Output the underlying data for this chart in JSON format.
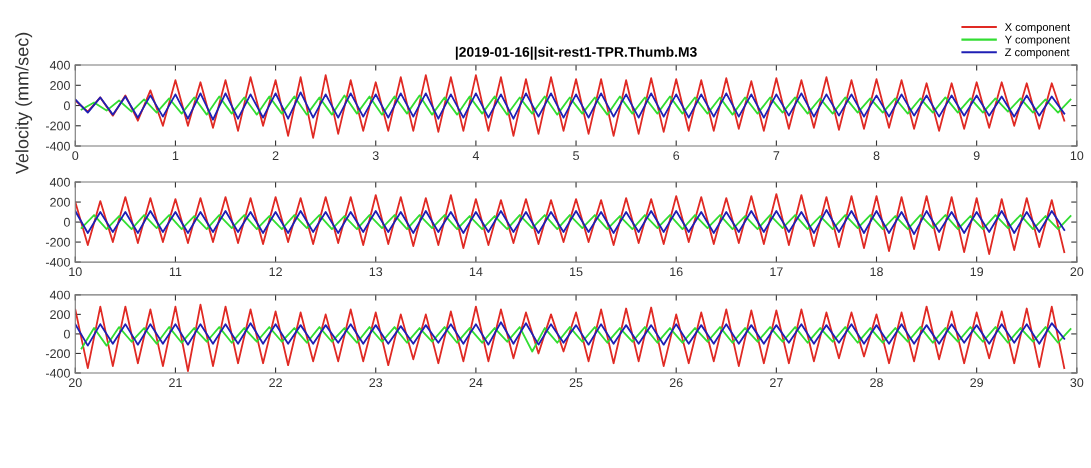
{
  "chart_data": [
    {
      "type": "line",
      "title": "|2019-01-16||sit-rest1-TPR.Thumb.M3",
      "ylabel": "Velocity (mm/sec)",
      "legend": "top right",
      "xlim": [
        0,
        10
      ],
      "xticks": [
        0,
        1,
        2,
        3,
        4,
        5,
        6,
        7,
        8,
        9,
        10
      ],
      "ylim": [
        -400,
        400
      ],
      "yticks": [
        -400,
        -200,
        0,
        200,
        400
      ],
      "x": [
        0,
        0.125,
        0.25,
        0.375,
        0.5,
        0.625,
        0.75,
        0.875,
        1,
        1.125,
        1.25,
        1.375,
        1.5,
        1.625,
        1.75,
        1.875,
        2,
        2.125,
        2.25,
        2.375,
        2.5,
        2.625,
        2.75,
        2.875,
        3,
        3.125,
        3.25,
        3.375,
        3.5,
        3.625,
        3.75,
        3.875,
        4,
        4.125,
        4.25,
        4.375,
        4.5,
        4.625,
        4.75,
        4.875,
        5,
        5.125,
        5.25,
        5.375,
        5.5,
        5.625,
        5.75,
        5.875,
        6,
        6.125,
        6.25,
        6.375,
        6.5,
        6.625,
        6.75,
        6.875,
        7,
        7.125,
        7.25,
        7.375,
        7.5,
        7.625,
        7.75,
        7.875,
        8,
        8.125,
        8.25,
        8.375,
        8.5,
        8.625,
        8.75,
        8.875,
        9,
        9.125,
        9.25,
        9.375,
        9.5,
        9.625,
        9.75,
        9.875
      ],
      "series": [
        {
          "name": "X component",
          "color": "#e02a24",
          "values": [
            50,
            -60,
            80,
            -100,
            100,
            -150,
            150,
            -200,
            250,
            -200,
            230,
            -220,
            250,
            -250,
            280,
            -200,
            250,
            -300,
            280,
            -320,
            300,
            -280,
            250,
            -250,
            230,
            -250,
            280,
            -250,
            300,
            -260,
            280,
            -250,
            300,
            -250,
            280,
            -300,
            260,
            -280,
            280,
            -250,
            260,
            -280,
            260,
            -300,
            250,
            -280,
            270,
            -260,
            260,
            -250,
            250,
            -250,
            270,
            -230,
            240,
            -250,
            270,
            -230,
            250,
            -220,
            280,
            -240,
            250,
            -230,
            260,
            -220,
            250,
            -230,
            220,
            -250,
            220,
            -230,
            230,
            -220,
            230,
            -200,
            220,
            -230,
            220,
            -150
          ]
        },
        {
          "name": "Y component",
          "color": "#33dd33",
          "x": [
            0.0625,
            0.1875,
            0.3125,
            0.4375,
            0.5625,
            0.6875,
            0.8125,
            0.9375,
            1.0625,
            1.1875,
            1.3125,
            1.4375,
            1.5625,
            1.6875,
            1.8125,
            1.9375,
            2.0625,
            2.1875,
            2.3125,
            2.4375,
            2.5625,
            2.6875,
            2.8125,
            2.9375,
            3.0625,
            3.1875,
            3.3125,
            3.4375,
            3.5625,
            3.6875,
            3.8125,
            3.9375,
            4.0625,
            4.1875,
            4.3125,
            4.4375,
            4.5625,
            4.6875,
            4.8125,
            4.9375,
            5.0625,
            5.1875,
            5.3125,
            5.4375,
            5.5625,
            5.6875,
            5.8125,
            5.9375,
            6.0625,
            6.1875,
            6.3125,
            6.4375,
            6.5625,
            6.6875,
            6.8125,
            6.9375,
            7.0625,
            7.1875,
            7.3125,
            7.4375,
            7.5625,
            7.6875,
            7.8125,
            7.9375,
            8.0625,
            8.1875,
            8.3125,
            8.4375,
            8.5625,
            8.6875,
            8.8125,
            8.9375,
            9.0625,
            9.1875,
            9.3125,
            9.4375,
            9.5625,
            9.6875,
            9.8125,
            9.9375
          ],
          "values": [
            -40,
            30,
            -50,
            50,
            -60,
            60,
            -70,
            70,
            -80,
            80,
            -90,
            90,
            -80,
            80,
            -90,
            90,
            -80,
            90,
            -90,
            80,
            -90,
            100,
            -80,
            90,
            -90,
            90,
            -80,
            100,
            -90,
            80,
            -90,
            90,
            -80,
            90,
            -90,
            80,
            -80,
            90,
            -90,
            80,
            -80,
            80,
            -90,
            90,
            -80,
            80,
            -80,
            90,
            -80,
            80,
            -80,
            80,
            -90,
            80,
            -80,
            80,
            -70,
            80,
            -80,
            70,
            -80,
            80,
            -70,
            70,
            -70,
            70,
            -80,
            70,
            -70,
            80,
            -70,
            70,
            -70,
            70,
            -60,
            70,
            -70,
            60,
            -70,
            60
          ]
        },
        {
          "name": "Z component",
          "color": "#1f1fb4",
          "values": [
            60,
            -70,
            80,
            -90,
            90,
            -120,
            100,
            -110,
            110,
            -130,
            120,
            -140,
            120,
            -130,
            110,
            -120,
            120,
            -130,
            130,
            -120,
            110,
            -120,
            120,
            -110,
            110,
            -120,
            120,
            -110,
            120,
            -130,
            110,
            -120,
            120,
            -120,
            110,
            -130,
            120,
            -110,
            120,
            -120,
            110,
            -120,
            120,
            -110,
            110,
            -120,
            120,
            -110,
            110,
            -120,
            110,
            -110,
            120,
            -110,
            110,
            -120,
            110,
            -100,
            120,
            -110,
            110,
            -100,
            110,
            -110,
            100,
            -110,
            110,
            -100,
            100,
            -110,
            100,
            -100,
            100,
            -100,
            90,
            -110,
            100,
            -100,
            90,
            -80
          ]
        }
      ]
    },
    {
      "type": "line",
      "xlim": [
        10,
        20
      ],
      "xticks": [
        10,
        11,
        12,
        13,
        14,
        15,
        16,
        17,
        18,
        19,
        20
      ],
      "ylim": [
        -400,
        400
      ],
      "yticks": [
        -400,
        -200,
        0,
        200,
        400
      ],
      "x": [
        10,
        10.125,
        10.25,
        10.375,
        10.5,
        10.625,
        10.75,
        10.875,
        11,
        11.125,
        11.25,
        11.375,
        11.5,
        11.625,
        11.75,
        11.875,
        12,
        12.125,
        12.25,
        12.375,
        12.5,
        12.625,
        12.75,
        12.875,
        13,
        13.125,
        13.25,
        13.375,
        13.5,
        13.625,
        13.75,
        13.875,
        14,
        14.125,
        14.25,
        14.375,
        14.5,
        14.625,
        14.75,
        14.875,
        15,
        15.125,
        15.25,
        15.375,
        15.5,
        15.625,
        15.75,
        15.875,
        16,
        16.125,
        16.25,
        16.375,
        16.5,
        16.625,
        16.75,
        16.875,
        17,
        17.125,
        17.25,
        17.375,
        17.5,
        17.625,
        17.75,
        17.875,
        18,
        18.125,
        18.25,
        18.375,
        18.5,
        18.625,
        18.75,
        18.875,
        19,
        19.125,
        19.25,
        19.375,
        19.5,
        19.625,
        19.75,
        19.875
      ],
      "series": [
        {
          "color": "#e02a24",
          "values": [
            200,
            -230,
            210,
            -200,
            250,
            -210,
            240,
            -200,
            230,
            -210,
            240,
            -200,
            250,
            -210,
            240,
            -220,
            250,
            -200,
            240,
            -220,
            250,
            -210,
            250,
            -230,
            270,
            -220,
            250,
            -240,
            240,
            -230,
            270,
            -260,
            230,
            -230,
            220,
            -210,
            230,
            -220,
            220,
            -200,
            230,
            -200,
            220,
            -230,
            240,
            -210,
            230,
            -220,
            260,
            -200,
            250,
            -220,
            240,
            -210,
            260,
            -220,
            280,
            -230,
            270,
            -240,
            250,
            -250,
            260,
            -260,
            260,
            -290,
            250,
            -270,
            260,
            -280,
            250,
            -300,
            240,
            -320,
            230,
            -280,
            240,
            -250,
            220,
            -300
          ]
        },
        {
          "color": "#33dd33",
          "x": [
            10.0625,
            10.1875,
            10.3125,
            10.4375,
            10.5625,
            10.6875,
            10.8125,
            10.9375,
            11.0625,
            11.1875,
            11.3125,
            11.4375,
            11.5625,
            11.6875,
            11.8125,
            11.9375,
            12.0625,
            12.1875,
            12.3125,
            12.4375,
            12.5625,
            12.6875,
            12.8125,
            12.9375,
            13.0625,
            13.1875,
            13.3125,
            13.4375,
            13.5625,
            13.6875,
            13.8125,
            13.9375,
            14.0625,
            14.1875,
            14.3125,
            14.4375,
            14.5625,
            14.6875,
            14.8125,
            14.9375,
            15.0625,
            15.1875,
            15.3125,
            15.4375,
            15.5625,
            15.6875,
            15.8125,
            15.9375,
            16.0625,
            16.1875,
            16.3125,
            16.4375,
            16.5625,
            16.6875,
            16.8125,
            16.9375,
            17.0625,
            17.1875,
            17.3125,
            17.4375,
            17.5625,
            17.6875,
            17.8125,
            17.9375,
            18.0625,
            18.1875,
            18.3125,
            18.4375,
            18.5625,
            18.6875,
            18.8125,
            18.9375,
            19.0625,
            19.1875,
            19.3125,
            19.4375,
            19.5625,
            19.6875,
            19.8125,
            19.9375
          ],
          "values": [
            -60,
            70,
            -70,
            60,
            -70,
            70,
            -60,
            70,
            -70,
            60,
            -70,
            70,
            -60,
            70,
            -70,
            60,
            -70,
            70,
            -60,
            70,
            -70,
            60,
            -70,
            70,
            -60,
            70,
            -70,
            70,
            -60,
            70,
            -70,
            60,
            -70,
            60,
            -70,
            70,
            -60,
            70,
            -70,
            70,
            -60,
            70,
            -70,
            60,
            -70,
            70,
            -60,
            70,
            -70,
            70,
            -60,
            70,
            -70,
            60,
            -70,
            70,
            -60,
            70,
            -70,
            60,
            -70,
            70,
            -60,
            70,
            -70,
            60,
            -70,
            70,
            -60,
            70,
            -70,
            60,
            -70,
            70,
            -60,
            70,
            -70,
            60,
            -70,
            60
          ]
        },
        {
          "color": "#1f1fb4",
          "values": [
            110,
            -110,
            100,
            -100,
            100,
            -110,
            110,
            -100,
            100,
            -110,
            100,
            -100,
            110,
            -100,
            100,
            -110,
            100,
            -110,
            110,
            -100,
            100,
            -110,
            100,
            -100,
            110,
            -100,
            100,
            -110,
            110,
            -100,
            100,
            -110,
            100,
            -100,
            110,
            -100,
            100,
            -110,
            100,
            -100,
            110,
            -100,
            100,
            -110,
            100,
            -100,
            110,
            -100,
            110,
            -100,
            100,
            -110,
            100,
            -100,
            110,
            -100,
            110,
            -100,
            100,
            -110,
            120,
            -100,
            110,
            -110,
            110,
            -110,
            100,
            -120,
            110,
            -100,
            100,
            -110,
            100,
            -100,
            110,
            -110,
            100,
            -100,
            110,
            -80
          ]
        }
      ]
    },
    {
      "type": "line",
      "xlim": [
        20,
        30
      ],
      "xticks": [
        20,
        21,
        22,
        23,
        24,
        25,
        26,
        27,
        28,
        29,
        30
      ],
      "ylim": [
        -400,
        400
      ],
      "yticks": [
        -400,
        -200,
        0,
        200,
        400
      ],
      "x": [
        20,
        20.125,
        20.25,
        20.375,
        20.5,
        20.625,
        20.75,
        20.875,
        21,
        21.125,
        21.25,
        21.375,
        21.5,
        21.625,
        21.75,
        21.875,
        22,
        22.125,
        22.25,
        22.375,
        22.5,
        22.625,
        22.75,
        22.875,
        23,
        23.125,
        23.25,
        23.375,
        23.5,
        23.625,
        23.75,
        23.875,
        24,
        24.125,
        24.25,
        24.375,
        24.5,
        24.625,
        24.75,
        24.875,
        25,
        25.125,
        25.25,
        25.375,
        25.5,
        25.625,
        25.75,
        25.875,
        26,
        26.125,
        26.25,
        26.375,
        26.5,
        26.625,
        26.75,
        26.875,
        27,
        27.125,
        27.25,
        27.375,
        27.5,
        27.625,
        27.75,
        27.875,
        28,
        28.125,
        28.25,
        28.375,
        28.5,
        28.625,
        28.75,
        28.875,
        29,
        29.125,
        29.25,
        29.375,
        29.5,
        29.625,
        29.75,
        29.875
      ],
      "series": [
        {
          "color": "#e02a24",
          "values": [
            250,
            -350,
            280,
            -330,
            280,
            -300,
            250,
            -330,
            280,
            -380,
            300,
            -330,
            280,
            -300,
            250,
            -300,
            230,
            -320,
            220,
            -280,
            200,
            -280,
            250,
            -280,
            220,
            -320,
            200,
            -260,
            200,
            -300,
            230,
            -280,
            280,
            -280,
            250,
            -250,
            220,
            -200,
            200,
            -180,
            220,
            -280,
            250,
            -300,
            260,
            -280,
            270,
            -330,
            200,
            -300,
            220,
            -280,
            250,
            -330,
            240,
            -300,
            240,
            -300,
            250,
            -280,
            220,
            -250,
            220,
            -230,
            200,
            -300,
            220,
            -280,
            280,
            -260,
            230,
            -300,
            220,
            -250,
            230,
            -300,
            260,
            -340,
            280,
            -350
          ]
        },
        {
          "color": "#33dd33",
          "x": [
            20.0625,
            20.1875,
            20.3125,
            20.4375,
            20.5625,
            20.6875,
            20.8125,
            20.9375,
            21.0625,
            21.1875,
            21.3125,
            21.4375,
            21.5625,
            21.6875,
            21.8125,
            21.9375,
            22.0625,
            22.1875,
            22.3125,
            22.4375,
            22.5625,
            22.6875,
            22.8125,
            22.9375,
            23.0625,
            23.1875,
            23.3125,
            23.4375,
            23.5625,
            23.6875,
            23.8125,
            23.9375,
            24.0625,
            24.1875,
            24.3125,
            24.4375,
            24.5625,
            24.6875,
            24.8125,
            24.9375,
            25.0625,
            25.1875,
            25.3125,
            25.4375,
            25.5625,
            25.6875,
            25.8125,
            25.9375,
            26.0625,
            26.1875,
            26.3125,
            26.4375,
            26.5625,
            26.6875,
            26.8125,
            26.9375,
            27.0625,
            27.1875,
            27.3125,
            27.4375,
            27.5625,
            27.6875,
            27.8125,
            27.9375,
            28.0625,
            28.1875,
            28.3125,
            28.4375,
            28.5625,
            28.6875,
            28.8125,
            28.9375,
            29.0625,
            29.1875,
            29.3125,
            29.4375,
            29.5625,
            29.6875,
            29.8125,
            29.9375
          ],
          "values": [
            -150,
            60,
            -120,
            70,
            -80,
            60,
            -100,
            70,
            -90,
            60,
            -80,
            70,
            -90,
            60,
            -80,
            70,
            -80,
            60,
            -90,
            70,
            -80,
            60,
            -90,
            70,
            -80,
            70,
            -90,
            60,
            -80,
            70,
            -90,
            60,
            -90,
            60,
            -80,
            70,
            -180,
            60,
            -90,
            70,
            -80,
            70,
            -90,
            60,
            -80,
            70,
            -90,
            60,
            -90,
            60,
            -80,
            70,
            -90,
            60,
            -80,
            70,
            -80,
            70,
            -90,
            60,
            -80,
            70,
            -90,
            60,
            -90,
            60,
            -80,
            70,
            -90,
            60,
            -80,
            70,
            -80,
            70,
            -90,
            60,
            -80,
            70,
            -90,
            50
          ]
        },
        {
          "color": "#1f1fb4",
          "values": [
            100,
            -120,
            100,
            -100,
            100,
            -110,
            100,
            -100,
            100,
            -110,
            100,
            -100,
            100,
            -100,
            110,
            -100,
            100,
            -100,
            90,
            -100,
            90,
            -90,
            100,
            -100,
            90,
            -100,
            80,
            -100,
            90,
            -90,
            100,
            -100,
            100,
            -110,
            120,
            -100,
            110,
            -110,
            100,
            -90,
            90,
            -110,
            100,
            -100,
            90,
            -100,
            90,
            -110,
            100,
            -100,
            90,
            -100,
            100,
            -100,
            90,
            -100,
            90,
            -90,
            100,
            -100,
            90,
            -90,
            100,
            -100,
            90,
            -100,
            100,
            -100,
            90,
            -100,
            100,
            -90,
            90,
            -100,
            100,
            -90,
            100,
            -100,
            110,
            -50
          ]
        }
      ]
    }
  ]
}
